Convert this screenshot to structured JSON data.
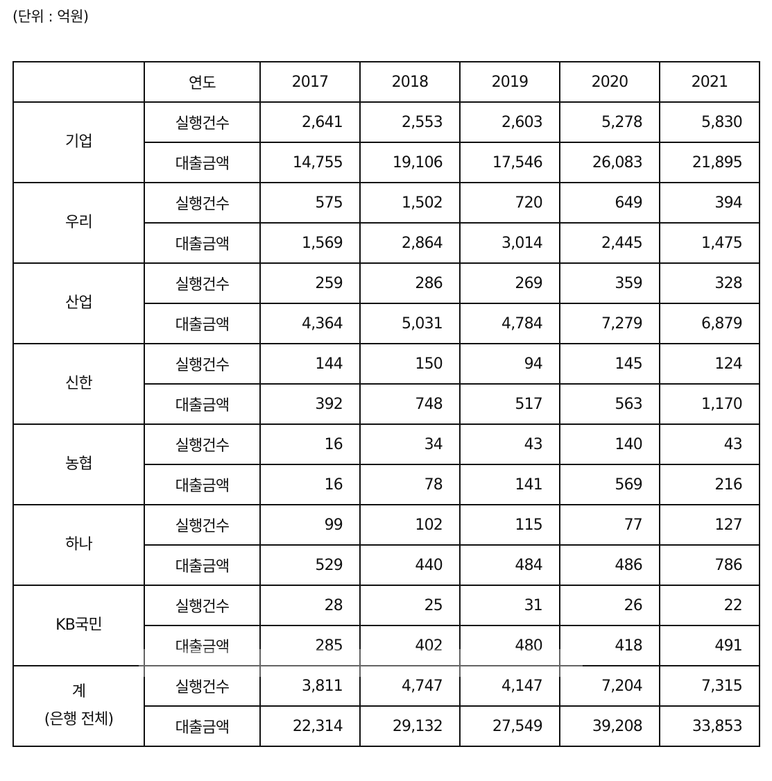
{
  "unit_label": "(단위 : 억원)",
  "table": {
    "header": {
      "corner": "",
      "year_label": "연도",
      "years": [
        "2017",
        "2018",
        "2019",
        "2020",
        "2021"
      ]
    },
    "banks": [
      {
        "name": "기업",
        "name_line2": "",
        "rows": [
          {
            "metric": "실행건수",
            "values": [
              "2,641",
              "2,553",
              "2,603",
              "5,278",
              "5,830"
            ]
          },
          {
            "metric": "대출금액",
            "values": [
              "14,755",
              "19,106",
              "17,546",
              "26,083",
              "21,895"
            ]
          }
        ]
      },
      {
        "name": "우리",
        "name_line2": "",
        "rows": [
          {
            "metric": "실행건수",
            "values": [
              "575",
              "1,502",
              "720",
              "649",
              "394"
            ]
          },
          {
            "metric": "대출금액",
            "values": [
              "1,569",
              "2,864",
              "3,014",
              "2,445",
              "1,475"
            ]
          }
        ]
      },
      {
        "name": "산업",
        "name_line2": "",
        "rows": [
          {
            "metric": "실행건수",
            "values": [
              "259",
              "286",
              "269",
              "359",
              "328"
            ]
          },
          {
            "metric": "대출금액",
            "values": [
              "4,364",
              "5,031",
              "4,784",
              "7,279",
              "6,879"
            ]
          }
        ]
      },
      {
        "name": "신한",
        "name_line2": "",
        "rows": [
          {
            "metric": "실행건수",
            "values": [
              "144",
              "150",
              "94",
              "145",
              "124"
            ]
          },
          {
            "metric": "대출금액",
            "values": [
              "392",
              "748",
              "517",
              "563",
              "1,170"
            ]
          }
        ]
      },
      {
        "name": "농협",
        "name_line2": "",
        "rows": [
          {
            "metric": "실행건수",
            "values": [
              "16",
              "34",
              "43",
              "140",
              "43"
            ]
          },
          {
            "metric": "대출금액",
            "values": [
              "16",
              "78",
              "141",
              "569",
              "216"
            ]
          }
        ]
      },
      {
        "name": "하나",
        "name_line2": "",
        "rows": [
          {
            "metric": "실행건수",
            "values": [
              "99",
              "102",
              "115",
              "77",
              "127"
            ]
          },
          {
            "metric": "대출금액",
            "values": [
              "529",
              "440",
              "484",
              "486",
              "786"
            ]
          }
        ]
      },
      {
        "name": "KB국민",
        "name_line2": "",
        "rows": [
          {
            "metric": "실행건수",
            "values": [
              "28",
              "25",
              "31",
              "26",
              "22"
            ]
          },
          {
            "metric": "대출금액",
            "values": [
              "285",
              "402",
              "480",
              "418",
              "491"
            ]
          }
        ]
      },
      {
        "name": "계",
        "name_line2": "(은행 전체)",
        "rows": [
          {
            "metric": "실행건수",
            "values": [
              "3,811",
              "4,747",
              "4,147",
              "7,204",
              "7,315"
            ]
          },
          {
            "metric": "대출금액",
            "values": [
              "22,314",
              "29,132",
              "27,549",
              "39,208",
              "33,853"
            ]
          }
        ]
      }
    ]
  }
}
